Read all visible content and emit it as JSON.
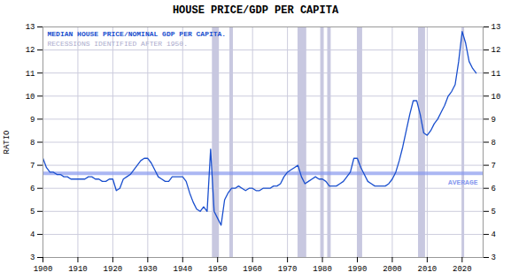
{
  "chart_data": {
    "type": "line",
    "title": "HOUSE PRICE/GDP PER CAPITA",
    "ylabel": "RATIO",
    "x": [
      1900,
      1901,
      1902,
      1903,
      1904,
      1905,
      1906,
      1907,
      1908,
      1909,
      1910,
      1911,
      1912,
      1913,
      1914,
      1915,
      1916,
      1917,
      1918,
      1919,
      1920,
      1921,
      1922,
      1923,
      1924,
      1925,
      1926,
      1927,
      1928,
      1929,
      1930,
      1931,
      1932,
      1933,
      1934,
      1935,
      1936,
      1937,
      1938,
      1939,
      1940,
      1941,
      1942,
      1943,
      1944,
      1945,
      1946,
      1947,
      1948,
      1949,
      1950,
      1951,
      1952,
      1953,
      1954,
      1955,
      1956,
      1957,
      1958,
      1959,
      1960,
      1961,
      1962,
      1963,
      1964,
      1965,
      1966,
      1967,
      1968,
      1969,
      1970,
      1971,
      1972,
      1973,
      1974,
      1975,
      1976,
      1977,
      1978,
      1979,
      1980,
      1981,
      1982,
      1983,
      1984,
      1985,
      1986,
      1987,
      1988,
      1989,
      1990,
      1991,
      1992,
      1993,
      1994,
      1995,
      1996,
      1997,
      1998,
      1999,
      2000,
      2001,
      2002,
      2003,
      2004,
      2005,
      2006,
      2007,
      2008,
      2009,
      2010,
      2011,
      2012,
      2013,
      2014,
      2015,
      2016,
      2017,
      2018,
      2019,
      2020,
      2021,
      2022,
      2023,
      2024
    ],
    "values": [
      7.3,
      6.9,
      6.7,
      6.7,
      6.6,
      6.6,
      6.5,
      6.5,
      6.4,
      6.4,
      6.4,
      6.4,
      6.4,
      6.5,
      6.5,
      6.4,
      6.4,
      6.3,
      6.3,
      6.4,
      6.4,
      5.9,
      6.0,
      6.4,
      6.5,
      6.6,
      6.8,
      7.0,
      7.2,
      7.3,
      7.3,
      7.1,
      6.8,
      6.5,
      6.4,
      6.3,
      6.3,
      6.5,
      6.5,
      6.5,
      6.5,
      6.3,
      5.8,
      5.4,
      5.1,
      5.0,
      5.2,
      5.0,
      7.7,
      5.0,
      4.7,
      4.4,
      5.5,
      5.8,
      6.0,
      6.0,
      6.1,
      6.0,
      5.9,
      6.0,
      6.0,
      5.9,
      5.9,
      6.0,
      6.0,
      6.0,
      6.1,
      6.1,
      6.2,
      6.5,
      6.7,
      6.8,
      6.9,
      7.0,
      6.5,
      6.2,
      6.3,
      6.4,
      6.5,
      6.4,
      6.4,
      6.3,
      6.1,
      6.1,
      6.1,
      6.2,
      6.3,
      6.5,
      6.7,
      7.3,
      7.3,
      6.9,
      6.6,
      6.3,
      6.2,
      6.1,
      6.1,
      6.1,
      6.1,
      6.2,
      6.4,
      6.7,
      7.2,
      7.8,
      8.5,
      9.2,
      9.8,
      9.8,
      9.2,
      8.4,
      8.3,
      8.5,
      8.8,
      9.0,
      9.3,
      9.6,
      10.0,
      10.2,
      10.5,
      11.5,
      12.8,
      12.3,
      11.5,
      11.2,
      11.0
    ],
    "color": "#1a4fce",
    "xlim": [
      1900,
      2026
    ],
    "xticks": [
      1900,
      1910,
      1920,
      1930,
      1940,
      1950,
      1960,
      1970,
      1980,
      1990,
      2000,
      2010,
      2020
    ],
    "ylim": [
      3,
      13
    ],
    "yticks": [
      3,
      4,
      5,
      6,
      7,
      8,
      9,
      10,
      11,
      12,
      13
    ],
    "y2lim": [
      3,
      13
    ],
    "y2ticks": [
      3,
      4,
      5,
      6,
      7,
      8,
      9,
      10,
      11,
      12,
      13
    ],
    "grid": true,
    "average": {
      "value": 6.65,
      "label": "AVERAGE",
      "color": "#8899ee"
    },
    "recessions": {
      "color": "#c8c8e0",
      "spans": [
        [
          1948.5,
          1950.5
        ],
        [
          1953.5,
          1954.5
        ],
        [
          1973.0,
          1975.5
        ],
        [
          1979.5,
          1980.5
        ],
        [
          1981.5,
          1982.5
        ],
        [
          1990.0,
          1991.5
        ],
        [
          2007.5,
          2009.5
        ],
        [
          2020.0,
          2020.7
        ]
      ]
    },
    "annotations": [
      {
        "text": "MEDIAN HOUSE PRICE/NOMINAL GDP PER CAPITA.",
        "color": "#1a4fce"
      },
      {
        "text": "RECESSIONS IDENTIFIED AFTER 1950.",
        "color": "#aaaacc"
      }
    ]
  }
}
